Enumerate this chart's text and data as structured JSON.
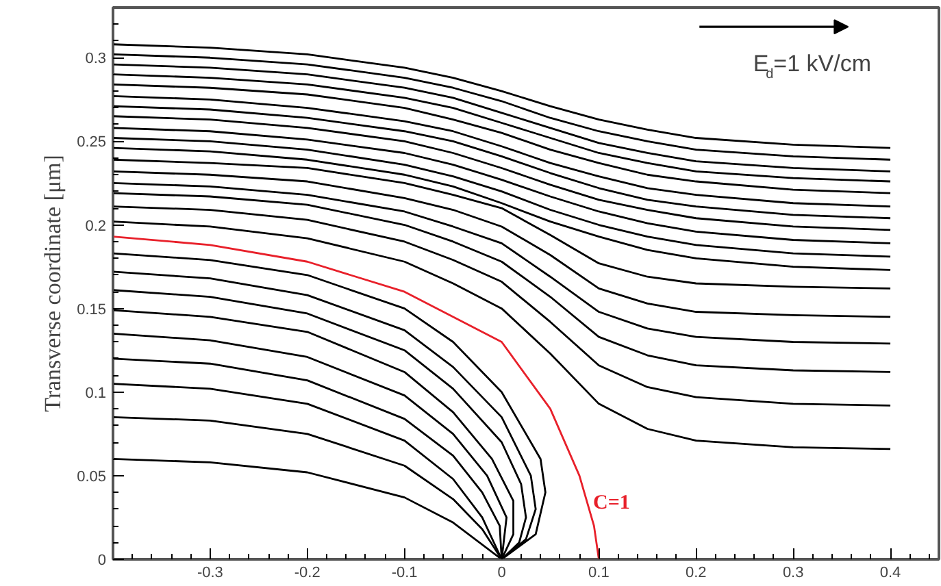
{
  "chart_data": {
    "type": "line",
    "ylabel": "Transverse coordinate [μm]",
    "annotations": [
      "E$_{d}$=1 kV/cm"
    ],
    "xlim": [
      -0.4,
      0.45
    ],
    "ylim": [
      0,
      0.33
    ],
    "xticks": [
      -0.3,
      -0.2,
      -0.1,
      0,
      0.1,
      0.2,
      0.3,
      0.4
    ],
    "yticks": [
      0,
      0.05,
      0.1,
      0.15,
      0.2,
      0.25,
      0.3
    ],
    "grid": false,
    "marker": "none",
    "line_style": "solid",
    "x": [
      -0.4,
      -0.3,
      -0.2,
      -0.1,
      -0.05,
      0,
      0.05,
      0.1,
      0.15,
      0.2,
      0.3,
      0.4
    ],
    "series": [
      {
        "color": "#000000",
        "values": [
          0.308,
          0.306,
          0.302,
          0.294,
          0.288,
          0.28,
          0.271,
          0.263,
          0.257,
          0.252,
          0.248,
          0.246
        ]
      },
      {
        "color": "#000000",
        "values": [
          0.302,
          0.3,
          0.296,
          0.288,
          0.282,
          0.274,
          0.264,
          0.256,
          0.25,
          0.245,
          0.241,
          0.239
        ]
      },
      {
        "color": "#000000",
        "values": [
          0.296,
          0.294,
          0.29,
          0.282,
          0.276,
          0.267,
          0.258,
          0.249,
          0.243,
          0.238,
          0.234,
          0.232
        ]
      },
      {
        "color": "#000000",
        "values": [
          0.29,
          0.288,
          0.284,
          0.276,
          0.27,
          0.261,
          0.252,
          0.243,
          0.237,
          0.232,
          0.228,
          0.226
        ]
      },
      {
        "color": "#000000",
        "values": [
          0.284,
          0.282,
          0.278,
          0.27,
          0.263,
          0.255,
          0.245,
          0.237,
          0.23,
          0.226,
          0.221,
          0.219
        ]
      },
      {
        "color": "#000000",
        "values": [
          0.277,
          0.275,
          0.27,
          0.262,
          0.256,
          0.247,
          0.237,
          0.229,
          0.222,
          0.218,
          0.213,
          0.211
        ]
      },
      {
        "color": "#000000",
        "values": [
          0.271,
          0.269,
          0.264,
          0.256,
          0.25,
          0.241,
          0.231,
          0.222,
          0.215,
          0.211,
          0.206,
          0.204
        ]
      },
      {
        "color": "#000000",
        "values": [
          0.265,
          0.263,
          0.258,
          0.25,
          0.243,
          0.234,
          0.224,
          0.215,
          0.209,
          0.204,
          0.199,
          0.197
        ]
      },
      {
        "color": "#000000",
        "values": [
          0.258,
          0.256,
          0.251,
          0.243,
          0.236,
          0.227,
          0.217,
          0.208,
          0.201,
          0.196,
          0.191,
          0.189
        ]
      },
      {
        "color": "#000000",
        "values": [
          0.252,
          0.25,
          0.245,
          0.236,
          0.229,
          0.22,
          0.209,
          0.2,
          0.193,
          0.188,
          0.183,
          0.181
        ]
      },
      {
        "color": "#000000",
        "values": [
          0.246,
          0.244,
          0.239,
          0.23,
          0.223,
          0.213,
          0.202,
          0.193,
          0.185,
          0.18,
          0.175,
          0.173
        ]
      },
      {
        "color": "#000000",
        "values": [
          0.239,
          0.237,
          0.234,
          0.225,
          0.218,
          0.21,
          0.194,
          0.177,
          0.169,
          0.165,
          0.163,
          0.162
        ]
      },
      {
        "color": "#000000",
        "values": [
          0.232,
          0.23,
          0.226,
          0.216,
          0.209,
          0.199,
          0.182,
          0.162,
          0.153,
          0.148,
          0.146,
          0.145
        ]
      },
      {
        "color": "#000000",
        "values": [
          0.225,
          0.223,
          0.218,
          0.208,
          0.199,
          0.189,
          0.169,
          0.148,
          0.138,
          0.133,
          0.13,
          0.129
        ]
      },
      {
        "color": "#000000",
        "values": [
          0.219,
          0.217,
          0.212,
          0.2,
          0.19,
          0.178,
          0.157,
          0.133,
          0.122,
          0.116,
          0.113,
          0.112
        ]
      },
      {
        "color": "#000000",
        "values": [
          0.211,
          0.209,
          0.203,
          0.19,
          0.179,
          0.166,
          0.142,
          0.116,
          0.103,
          0.097,
          0.093,
          0.092
        ]
      },
      {
        "color": "#000000",
        "values": [
          0.202,
          0.199,
          0.192,
          0.178,
          0.165,
          0.15,
          0.123,
          0.093,
          0.078,
          0.071,
          0.067,
          0.066
        ]
      },
      {
        "name": "C=1",
        "color": "#e8202a",
        "x": [
          -0.4,
          -0.3,
          -0.2,
          -0.1,
          0,
          0.05,
          0.08,
          0.095,
          0.1
        ],
        "values": [
          0.193,
          0.188,
          0.178,
          0.16,
          0.13,
          0.09,
          0.05,
          0.02,
          0
        ]
      },
      {
        "color": "#000000",
        "x": [
          -0.4,
          -0.3,
          -0.2,
          -0.1,
          -0.05,
          0,
          0.04,
          0.045,
          0.035,
          0
        ],
        "values": [
          0.183,
          0.179,
          0.17,
          0.15,
          0.13,
          0.1,
          0.06,
          0.04,
          0.015,
          0
        ]
      },
      {
        "color": "#000000",
        "x": [
          -0.4,
          -0.3,
          -0.2,
          -0.1,
          -0.05,
          0,
          0.03,
          0.035,
          0.025,
          0
        ],
        "values": [
          0.172,
          0.168,
          0.158,
          0.137,
          0.115,
          0.085,
          0.05,
          0.03,
          0.012,
          0
        ]
      },
      {
        "color": "#000000",
        "x": [
          -0.4,
          -0.3,
          -0.2,
          -0.1,
          -0.05,
          0,
          0.02,
          0.025,
          0.018,
          0
        ],
        "values": [
          0.161,
          0.157,
          0.147,
          0.125,
          0.102,
          0.07,
          0.045,
          0.025,
          0.01,
          0
        ]
      },
      {
        "color": "#000000",
        "x": [
          -0.4,
          -0.3,
          -0.2,
          -0.1,
          -0.05,
          -0.01,
          0.012,
          0.012,
          0
        ],
        "values": [
          0.149,
          0.145,
          0.136,
          0.112,
          0.088,
          0.06,
          0.035,
          0.015,
          0
        ]
      },
      {
        "color": "#000000",
        "x": [
          -0.4,
          -0.3,
          -0.2,
          -0.1,
          -0.05,
          -0.015,
          0.005,
          0
        ],
        "values": [
          0.135,
          0.131,
          0.121,
          0.098,
          0.075,
          0.05,
          0.025,
          0
        ]
      },
      {
        "color": "#000000",
        "x": [
          -0.4,
          -0.3,
          -0.2,
          -0.1,
          -0.05,
          -0.02,
          -0.002,
          0
        ],
        "values": [
          0.12,
          0.117,
          0.107,
          0.084,
          0.062,
          0.04,
          0.02,
          0
        ]
      },
      {
        "color": "#000000",
        "x": [
          -0.4,
          -0.3,
          -0.2,
          -0.1,
          -0.05,
          -0.02,
          0
        ],
        "values": [
          0.105,
          0.102,
          0.093,
          0.071,
          0.048,
          0.025,
          0
        ]
      },
      {
        "color": "#000000",
        "x": [
          -0.4,
          -0.3,
          -0.2,
          -0.1,
          -0.05,
          -0.02,
          0
        ],
        "values": [
          0.085,
          0.083,
          0.075,
          0.056,
          0.036,
          0.018,
          0
        ]
      },
      {
        "color": "#000000",
        "x": [
          -0.4,
          -0.3,
          -0.2,
          -0.1,
          -0.05,
          0
        ],
        "values": [
          0.06,
          0.058,
          0.052,
          0.037,
          0.022,
          0
        ]
      }
    ]
  }
}
